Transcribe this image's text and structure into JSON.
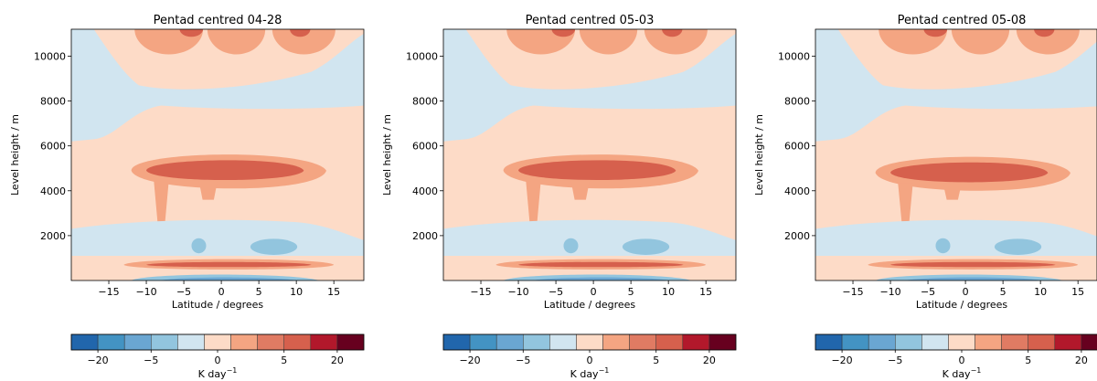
{
  "chart_data": [
    {
      "type": "heatmap",
      "title": "Pentad centred 04-28",
      "xlabel": "Latitude / degrees",
      "ylabel": "Level height / m",
      "x_ticks": [
        -15,
        -10,
        -5,
        0,
        5,
        10,
        15
      ],
      "y_ticks": [
        2000,
        4000,
        6000,
        8000,
        10000
      ],
      "xlim": [
        -20,
        19
      ],
      "ylim": [
        0,
        11200
      ],
      "colorbar_label": "K day",
      "colorbar_label_exponent": "−1",
      "colorbar_ticks": [
        "−20",
        "−5",
        "0",
        "5",
        "20"
      ],
      "levels": [
        -25,
        -20,
        -15,
        -10,
        -5,
        -1,
        0,
        1,
        5,
        10,
        15,
        20,
        25
      ],
      "colors": [
        "#2166ac",
        "#4393c3",
        "#6aa6d2",
        "#92c5de",
        "#d1e5f0",
        "#fddbc7",
        "#f4a582",
        "#e07b63",
        "#d6604d",
        "#b2182b",
        "#67001f"
      ],
      "bands": [
        {
          "name": "low-level heating layer",
          "y": 700,
          "value": 8
        },
        {
          "name": "mid-level heating layer",
          "y": 4900,
          "value": 12
        }
      ]
    },
    {
      "type": "heatmap",
      "title": "Pentad centred 05-03",
      "xlabel": "Latitude / degrees",
      "ylabel": "Level height / m",
      "x_ticks": [
        -15,
        -10,
        -5,
        0,
        5,
        10,
        15
      ],
      "y_ticks": [
        2000,
        4000,
        6000,
        8000,
        10000
      ],
      "xlim": [
        -20,
        19
      ],
      "ylim": [
        0,
        11200
      ],
      "colorbar_label": "K day",
      "colorbar_label_exponent": "−1",
      "colorbar_ticks": [
        "−20",
        "−5",
        "0",
        "5",
        "20"
      ],
      "levels": [
        -25,
        -20,
        -15,
        -10,
        -5,
        -1,
        0,
        1,
        5,
        10,
        15,
        20,
        25
      ],
      "colors": [
        "#2166ac",
        "#4393c3",
        "#6aa6d2",
        "#92c5de",
        "#d1e5f0",
        "#fddbc7",
        "#f4a582",
        "#e07b63",
        "#d6604d",
        "#b2182b",
        "#67001f"
      ],
      "bands": [
        {
          "name": "low-level heating layer",
          "y": 700,
          "value": 8
        },
        {
          "name": "mid-level heating layer",
          "y": 4900,
          "value": 10
        }
      ]
    },
    {
      "type": "heatmap",
      "title": "Pentad centred 05-08",
      "xlabel": "Latitude / degrees",
      "ylabel": "Level height / m",
      "x_ticks": [
        -15,
        -10,
        -5,
        0,
        5,
        10,
        15
      ],
      "y_ticks": [
        2000,
        4000,
        6000,
        8000,
        10000
      ],
      "xlim": [
        -20,
        19
      ],
      "ylim": [
        0,
        11200
      ],
      "colorbar_label": "K day",
      "colorbar_label_exponent": "−1",
      "colorbar_ticks": [
        "−20",
        "−5",
        "0",
        "5",
        "20"
      ],
      "levels": [
        -25,
        -20,
        -15,
        -10,
        -5,
        -1,
        0,
        1,
        5,
        10,
        15,
        20,
        25
      ],
      "colors": [
        "#2166ac",
        "#4393c3",
        "#6aa6d2",
        "#92c5de",
        "#d1e5f0",
        "#fddbc7",
        "#f4a582",
        "#e07b63",
        "#d6604d",
        "#b2182b",
        "#67001f"
      ],
      "bands": [
        {
          "name": "low-level heating layer",
          "y": 700,
          "value": 8
        },
        {
          "name": "mid-level heating layer",
          "y": 4800,
          "value": 11
        }
      ]
    }
  ]
}
